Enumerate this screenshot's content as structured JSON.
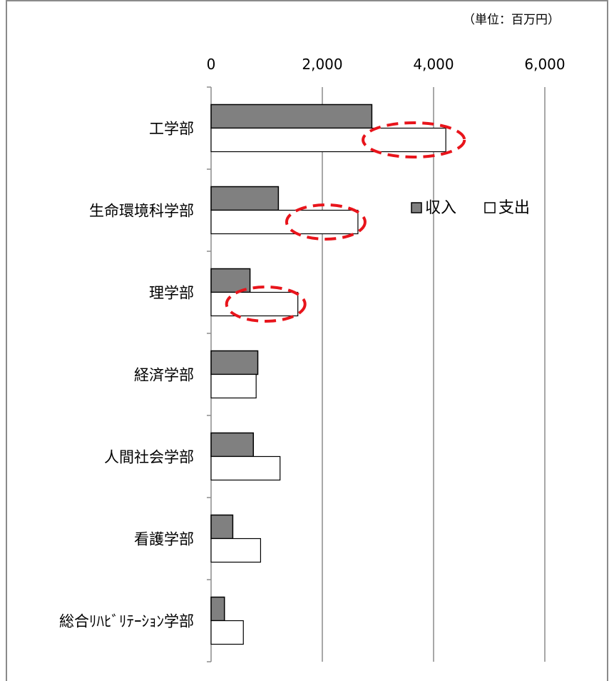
{
  "chart_data": {
    "type": "bar",
    "orientation": "horizontal",
    "unit_note": "（単位：百万円）",
    "categories": [
      "工学部",
      "生命環境科学部",
      "理学部",
      "経済学部",
      "人間社会学部",
      "看護学部",
      "総合ﾘﾊﾋﾞﾘﾃｰｼｮﾝ学部"
    ],
    "series": [
      {
        "name": "収入",
        "color": "#808080",
        "values": [
          2890,
          1210,
          700,
          840,
          760,
          390,
          240
        ]
      },
      {
        "name": "支出",
        "color": "#ffffff",
        "values": [
          4220,
          2640,
          1560,
          810,
          1240,
          890,
          580
        ]
      }
    ],
    "xlim": [
      0,
      6000
    ],
    "x_ticks": [
      0,
      2000,
      4000,
      6000
    ],
    "x_tick_labels": [
      "0",
      "2,000",
      "4,000",
      "6,000"
    ],
    "xaxis_position": "top",
    "grid": "vertical",
    "legend_position": "right",
    "highlighted_categories": [
      "工学部",
      "生命環境科学部",
      "理学部"
    ],
    "highlight_color": "#e8141b"
  }
}
